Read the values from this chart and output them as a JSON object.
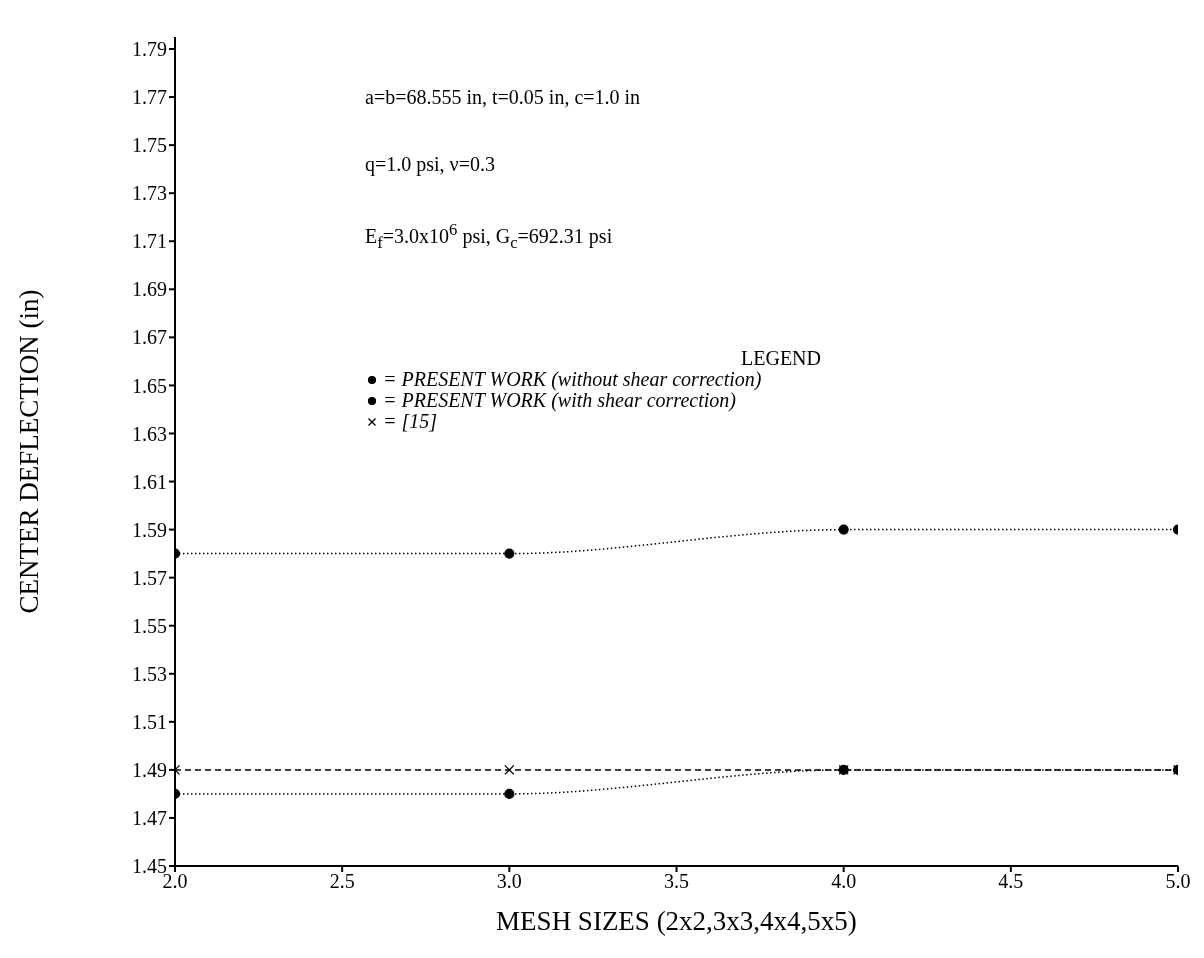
{
  "chart_data": {
    "type": "line",
    "xlabel": "MESH SIZES (2x2,3x3,4x4,5x5)",
    "ylabel": "CENTER DEFLECTION (in)",
    "x": [
      2,
      3,
      4,
      5
    ],
    "xlim": [
      2,
      5
    ],
    "xticks": [
      {
        "value": 2,
        "label": "2.0"
      },
      {
        "value": 2.5,
        "label": "2.5"
      },
      {
        "value": 3,
        "label": "3.0"
      },
      {
        "value": 3.5,
        "label": "3.5"
      },
      {
        "value": 4,
        "label": "4.0"
      },
      {
        "value": 4.5,
        "label": "4.5"
      },
      {
        "value": 5,
        "label": "5.0"
      }
    ],
    "ylim": [
      1.45,
      1.795
    ],
    "yticks": [
      1.45,
      1.47,
      1.49,
      1.51,
      1.53,
      1.55,
      1.57,
      1.59,
      1.61,
      1.63,
      1.65,
      1.67,
      1.69,
      1.71,
      1.73,
      1.75,
      1.77,
      1.79
    ],
    "grid": false,
    "legend": "top",
    "legend_title": "LEGEND",
    "series": [
      {
        "name": "= PRESENT WORK (without shear correction)",
        "color": "#000000",
        "values": [
          1.48,
          1.48,
          1.49,
          1.49
        ],
        "marker": "circle",
        "line_style": "dotted"
      },
      {
        "name": "= PRESENT WORK (with shear correction)",
        "color": "#000000",
        "values": [
          1.58,
          1.58,
          1.59,
          1.59
        ],
        "marker": "circle",
        "line_style": "dotted"
      },
      {
        "name": "= [15]",
        "color": "#000000",
        "values": [
          1.49,
          1.49,
          1.49,
          1.49
        ],
        "marker": "cross",
        "line_style": "dashed"
      }
    ],
    "annotations": [
      "a=b=68.555 in, t=0.05 in, c=1.0 in",
      "q=1.0 psi, ν=0.3",
      "E$_{f}$=3.0x10$^{6}$ psi, G$_{c}$=692.31 psi"
    ]
  }
}
